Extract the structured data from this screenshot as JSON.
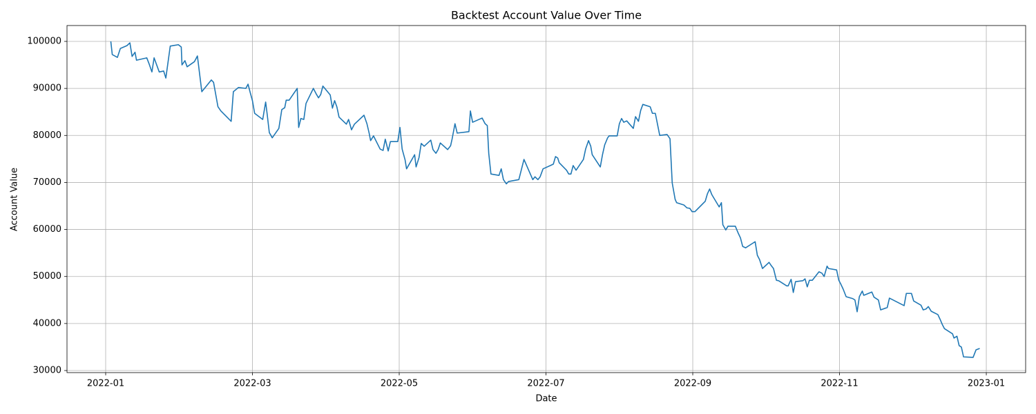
{
  "chart_data": {
    "type": "line",
    "title": "Backtest Account Value Over Time",
    "x_label": "Date",
    "y_label": "Account Value",
    "x": [
      0.07,
      0.09,
      0.16,
      0.2,
      0.29,
      0.33,
      0.36,
      0.4,
      0.42,
      0.56,
      0.59,
      0.63,
      0.66,
      0.73,
      0.79,
      0.82,
      0.85,
      0.88,
      0.99,
      1.03,
      1.04,
      1.08,
      1.11,
      1.21,
      1.25,
      1.31,
      1.44,
      1.47,
      1.53,
      1.57,
      1.71,
      1.74,
      1.81,
      1.91,
      1.94,
      1.97,
      2.0,
      2.03,
      2.14,
      2.18,
      2.2,
      2.23,
      2.27,
      2.36,
      2.4,
      2.44,
      2.46,
      2.5,
      2.61,
      2.63,
      2.66,
      2.7,
      2.73,
      2.83,
      2.87,
      2.9,
      2.93,
      2.96,
      3.06,
      3.09,
      3.12,
      3.15,
      3.18,
      3.28,
      3.31,
      3.35,
      3.39,
      3.52,
      3.56,
      3.59,
      3.61,
      3.65,
      3.74,
      3.78,
      3.81,
      3.85,
      3.88,
      3.98,
      4.01,
      4.04,
      4.08,
      4.1,
      4.21,
      4.23,
      4.27,
      4.3,
      4.34,
      4.43,
      4.46,
      4.5,
      4.53,
      4.56,
      4.66,
      4.7,
      4.72,
      4.76,
      4.79,
      4.95,
      4.97,
      5.0,
      5.13,
      5.17,
      5.2,
      5.22,
      5.25,
      5.36,
      5.39,
      5.42,
      5.46,
      5.49,
      5.63,
      5.7,
      5.82,
      5.85,
      5.89,
      5.92,
      5.96,
      6.06,
      6.1,
      6.13,
      6.16,
      6.18,
      6.28,
      6.31,
      6.34,
      6.37,
      6.41,
      6.51,
      6.54,
      6.58,
      6.61,
      6.63,
      6.74,
      6.77,
      6.8,
      6.84,
      6.86,
      6.97,
      7.0,
      7.03,
      7.06,
      7.1,
      7.19,
      7.22,
      7.26,
      7.29,
      7.32,
      7.42,
      7.45,
      7.49,
      7.55,
      7.65,
      7.69,
      7.72,
      7.76,
      7.78,
      7.88,
      7.92,
      7.96,
      7.99,
      8.03,
      8.17,
      8.2,
      8.23,
      8.26,
      8.36,
      8.39,
      8.41,
      8.45,
      8.48,
      8.58,
      8.62,
      8.65,
      8.68,
      8.72,
      8.81,
      8.85,
      8.88,
      8.91,
      8.95,
      9.04,
      9.07,
      9.1,
      9.14,
      9.17,
      9.28,
      9.3,
      9.34,
      9.37,
      9.4,
      9.5,
      9.53,
      9.56,
      9.59,
      9.63,
      9.72,
      9.76,
      9.79,
      9.83,
      9.85,
      9.96,
      9.99,
      10.02,
      10.05,
      10.09,
      10.18,
      10.21,
      10.24,
      10.27,
      10.31,
      10.33,
      10.44,
      10.47,
      10.53,
      10.56,
      10.65,
      10.68,
      10.88,
      10.91,
      10.98,
      11.01,
      11.11,
      11.14,
      11.18,
      11.21,
      11.25,
      11.34,
      11.37,
      11.4,
      11.43,
      11.54,
      11.56,
      11.6,
      11.63,
      11.66,
      11.69,
      11.82,
      11.86,
      11.91
    ],
    "series": [
      {
        "name": "Account Value",
        "color": "#1f77b4",
        "values": [
          100000,
          97200,
          96600,
          98500,
          99100,
          99700,
          96800,
          97700,
          96000,
          96500,
          95300,
          93500,
          96500,
          93500,
          93700,
          92200,
          95600,
          99000,
          99300,
          98800,
          95000,
          95900,
          94600,
          95700,
          96900,
          89300,
          91800,
          91300,
          86100,
          85200,
          83000,
          89300,
          90200,
          90000,
          90900,
          89100,
          87400,
          84700,
          83400,
          87100,
          84600,
          80600,
          79500,
          81500,
          85500,
          85900,
          87500,
          87500,
          90000,
          81700,
          83600,
          83400,
          86800,
          90000,
          88800,
          88000,
          88700,
          90500,
          88600,
          85800,
          87400,
          86100,
          83900,
          82400,
          83400,
          81200,
          82400,
          84300,
          82500,
          80500,
          78900,
          79900,
          77100,
          76800,
          79200,
          76700,
          78700,
          78700,
          81700,
          77100,
          74800,
          72900,
          75900,
          73300,
          75300,
          78300,
          77700,
          79000,
          77000,
          76200,
          77000,
          78400,
          77000,
          77800,
          79200,
          82500,
          80500,
          80800,
          85200,
          82800,
          83700,
          82500,
          82100,
          76200,
          71800,
          71500,
          72900,
          70600,
          69700,
          70200,
          70600,
          74900,
          70600,
          71200,
          70600,
          71200,
          72900,
          73600,
          73900,
          75500,
          75200,
          74200,
          72600,
          71800,
          71800,
          73600,
          72600,
          74900,
          77100,
          78900,
          77700,
          75900,
          73300,
          75900,
          78000,
          79500,
          79900,
          79900,
          82500,
          83600,
          82800,
          83100,
          81500,
          84000,
          83000,
          85300,
          86600,
          86100,
          84700,
          84700,
          80000,
          80200,
          79300,
          69900,
          66400,
          65700,
          65200,
          64600,
          64500,
          63800,
          63800,
          66000,
          67600,
          68600,
          67400,
          64800,
          65700,
          61000,
          59900,
          60700,
          60700,
          59200,
          58200,
          56400,
          56100,
          57000,
          57400,
          54500,
          53600,
          51700,
          53000,
          52300,
          51700,
          49200,
          49100,
          48000,
          48000,
          49400,
          46600,
          48900,
          49100,
          49500,
          47800,
          49200,
          49200,
          51000,
          50700,
          50000,
          52200,
          51700,
          51400,
          49200,
          48300,
          47300,
          45700,
          45300,
          45000,
          42500,
          45700,
          46900,
          46000,
          46700,
          45600,
          45000,
          42900,
          43400,
          45400,
          43800,
          46400,
          46400,
          44800,
          43900,
          42900,
          43100,
          43600,
          42600,
          41900,
          40900,
          39800,
          38900,
          37800,
          36900,
          37300,
          35300,
          35000,
          32900,
          32800,
          34400,
          34700
        ]
      }
    ],
    "xlim": [
      -0.527,
      12.536
    ],
    "xticks": [
      {
        "value": 0,
        "label": "2022-01"
      },
      {
        "value": 2,
        "label": "2022-03"
      },
      {
        "value": 4,
        "label": "2022-05"
      },
      {
        "value": 6,
        "label": "2022-07"
      },
      {
        "value": 8,
        "label": "2022-09"
      },
      {
        "value": 10,
        "label": "2022-11"
      },
      {
        "value": 12,
        "label": "2023-01"
      }
    ],
    "ylim": [
      29560,
      103375
    ],
    "yticks": [
      30000,
      40000,
      50000,
      60000,
      70000,
      80000,
      90000,
      100000
    ],
    "grid": true
  }
}
